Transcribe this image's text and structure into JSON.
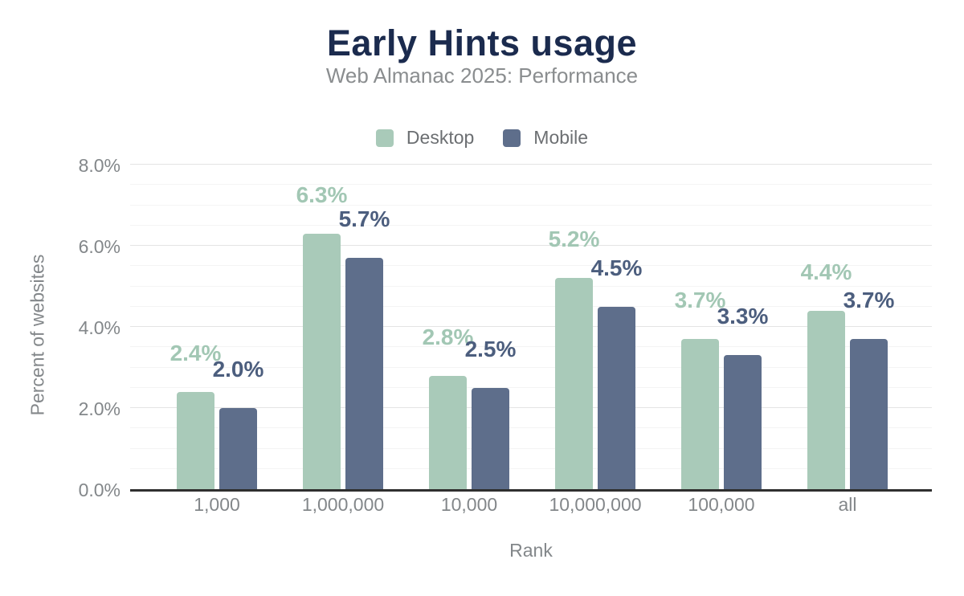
{
  "chart_data": {
    "type": "bar",
    "title": "Early Hints usage",
    "subtitle": "Web Almanac 2025: Performance",
    "xlabel": "Rank",
    "ylabel": "Percent of websites",
    "categories": [
      "1,000",
      "1,000,000",
      "10,000",
      "10,000,000",
      "100,000",
      "all"
    ],
    "series": [
      {
        "name": "Desktop",
        "color": "#a9cab9",
        "label_color": "#a2c7b4",
        "values": [
          2.4,
          6.3,
          2.8,
          5.2,
          3.7,
          4.4
        ],
        "labels": [
          "2.4%",
          "6.3%",
          "2.8%",
          "5.2%",
          "3.7%",
          "4.4%"
        ]
      },
      {
        "name": "Mobile",
        "color": "#5e6e8b",
        "label_color": "#4c5e7e",
        "values": [
          2.0,
          5.7,
          2.5,
          4.5,
          3.3,
          3.7
        ],
        "labels": [
          "2.0%",
          "5.7%",
          "2.5%",
          "4.5%",
          "3.3%",
          "3.7%"
        ]
      }
    ],
    "y_axis": {
      "max": 8,
      "minor_step": 0.5,
      "major_step": 2,
      "ticks": [
        {
          "value": 0,
          "label": "0.0%"
        },
        {
          "value": 2,
          "label": "2.0%"
        },
        {
          "value": 4,
          "label": "4.0%"
        },
        {
          "value": 6,
          "label": "6.0%"
        },
        {
          "value": 8,
          "label": "8.0%"
        }
      ]
    },
    "legend_position": "top",
    "grid": true
  },
  "theme": {
    "background": "#ffffff",
    "title_color": "#1b2b4e",
    "subtitle_color": "#8a8d8f",
    "legend_text_color": "#6c6f72",
    "tick_color": "#83878a",
    "axis_line_color": "#2f2f2f",
    "grid_minor_color": "#f4f4f4",
    "grid_major_color": "#e4e4e4"
  }
}
